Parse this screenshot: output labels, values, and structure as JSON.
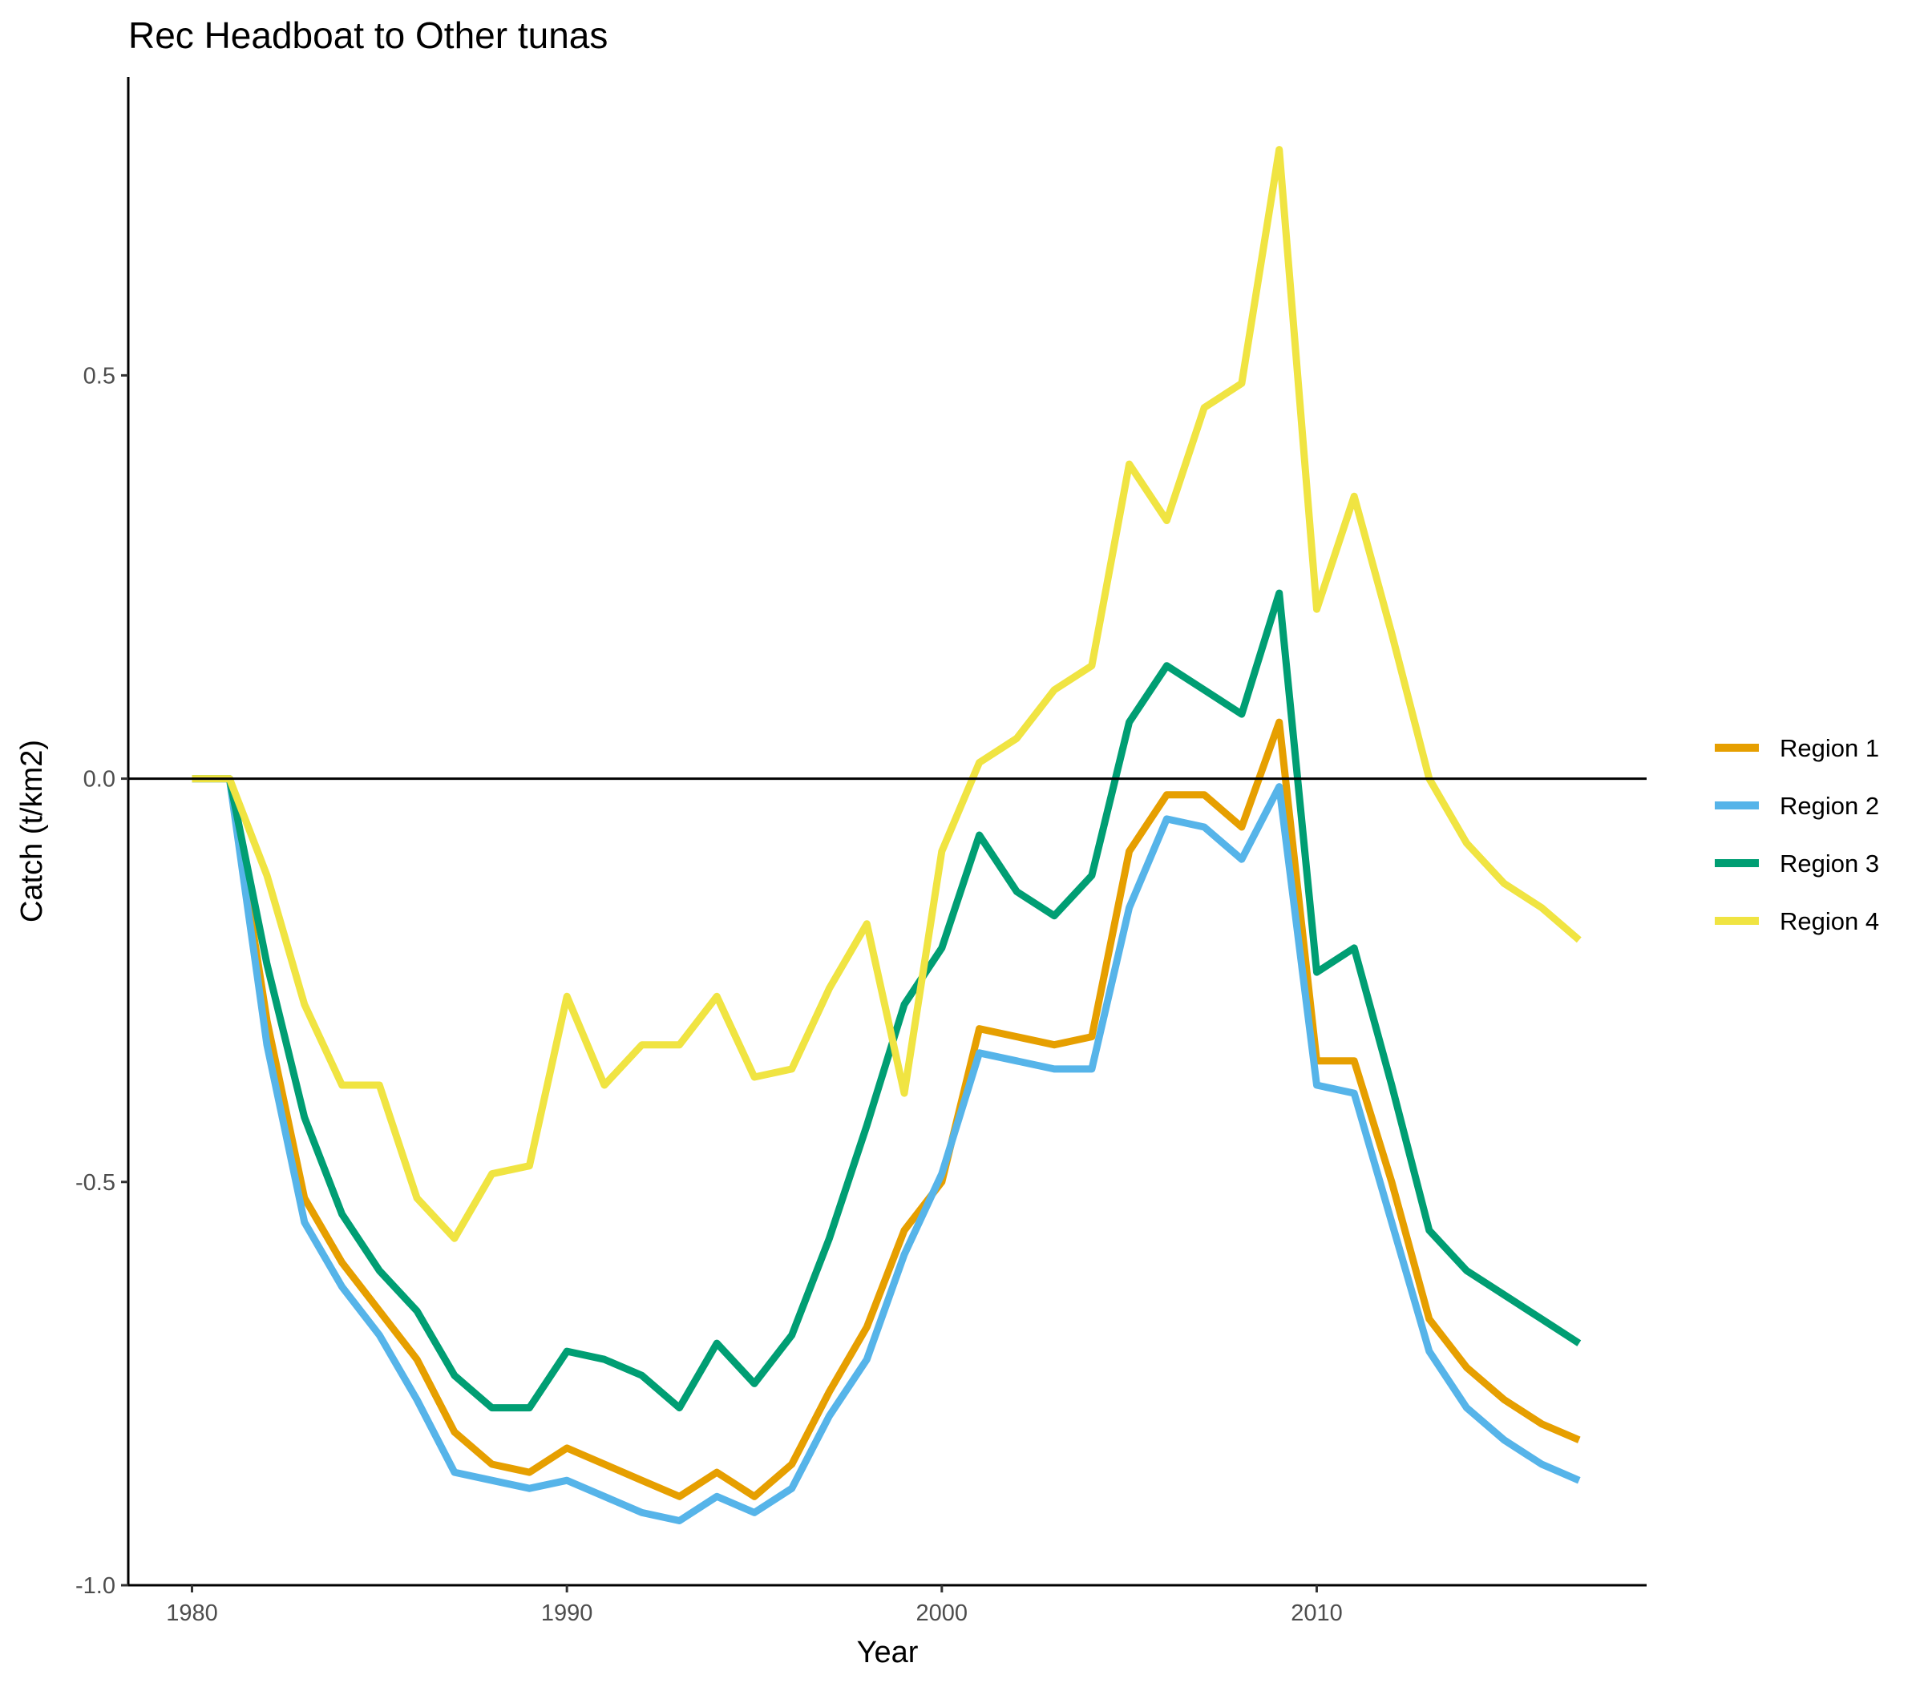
{
  "chart_data": {
    "type": "line",
    "title": "Rec Headboat to Other tunas",
    "xlabel": "Year",
    "ylabel": "Catch (t/km2)",
    "xlim": [
      1978.3,
      2018.8
    ],
    "ylim": [
      -1.0,
      0.87
    ],
    "x_ticks": [
      1980,
      1990,
      2000,
      2010
    ],
    "x_tick_labels": [
      "1980",
      "1990",
      "2000",
      "2010"
    ],
    "y_ticks": [
      -1.0,
      -0.5,
      0.0,
      0.5
    ],
    "y_tick_labels": [
      "-1.0",
      "-0.5",
      "0.0",
      "0.5"
    ],
    "zero_line": 0,
    "grid": false,
    "legend_position": "right",
    "series": [
      {
        "name": "Region 1",
        "color": "#E69F00",
        "x": [
          1980,
          1981,
          1982,
          1983,
          1984,
          1985,
          1986,
          1987,
          1988,
          1989,
          1990,
          1991,
          1992,
          1993,
          1994,
          1995,
          1996,
          1997,
          1998,
          1999,
          2000,
          2001,
          2002,
          2003,
          2004,
          2005,
          2006,
          2007,
          2008,
          2009,
          2010,
          2011,
          2012,
          2013,
          2014,
          2015,
          2016,
          2017
        ],
        "y": [
          0.0,
          0.0,
          -0.3,
          -0.52,
          -0.6,
          -0.66,
          -0.72,
          -0.81,
          -0.85,
          -0.86,
          -0.83,
          -0.85,
          -0.87,
          -0.89,
          -0.86,
          -0.89,
          -0.85,
          -0.76,
          -0.68,
          -0.56,
          -0.5,
          -0.31,
          -0.32,
          -0.33,
          -0.32,
          -0.09,
          -0.02,
          -0.02,
          -0.06,
          0.07,
          -0.35,
          -0.35,
          -0.5,
          -0.67,
          -0.73,
          -0.77,
          -0.8,
          -0.82
        ]
      },
      {
        "name": "Region 2",
        "color": "#56B4E9",
        "x": [
          1980,
          1981,
          1982,
          1983,
          1984,
          1985,
          1986,
          1987,
          1988,
          1989,
          1990,
          1991,
          1992,
          1993,
          1994,
          1995,
          1996,
          1997,
          1998,
          1999,
          2000,
          2001,
          2002,
          2003,
          2004,
          2005,
          2006,
          2007,
          2008,
          2009,
          2010,
          2011,
          2012,
          2013,
          2014,
          2015,
          2016,
          2017
        ],
        "y": [
          0.0,
          0.0,
          -0.33,
          -0.55,
          -0.63,
          -0.69,
          -0.77,
          -0.86,
          -0.87,
          -0.88,
          -0.87,
          -0.89,
          -0.91,
          -0.92,
          -0.89,
          -0.91,
          -0.88,
          -0.79,
          -0.72,
          -0.59,
          -0.49,
          -0.34,
          -0.35,
          -0.36,
          -0.36,
          -0.16,
          -0.05,
          -0.06,
          -0.1,
          -0.01,
          -0.38,
          -0.39,
          -0.55,
          -0.71,
          -0.78,
          -0.82,
          -0.85,
          -0.87
        ]
      },
      {
        "name": "Region 3",
        "color": "#009E73",
        "x": [
          1980,
          1981,
          1982,
          1983,
          1984,
          1985,
          1986,
          1987,
          1988,
          1989,
          1990,
          1991,
          1992,
          1993,
          1994,
          1995,
          1996,
          1997,
          1998,
          1999,
          2000,
          2001,
          2002,
          2003,
          2004,
          2005,
          2006,
          2007,
          2008,
          2009,
          2010,
          2011,
          2012,
          2013,
          2014,
          2015,
          2016,
          2017
        ],
        "y": [
          0.0,
          0.0,
          -0.23,
          -0.42,
          -0.54,
          -0.61,
          -0.66,
          -0.74,
          -0.78,
          -0.78,
          -0.71,
          -0.72,
          -0.74,
          -0.78,
          -0.7,
          -0.75,
          -0.69,
          -0.57,
          -0.43,
          -0.28,
          -0.21,
          -0.07,
          -0.14,
          -0.17,
          -0.12,
          0.07,
          0.14,
          0.11,
          0.08,
          0.23,
          -0.24,
          -0.21,
          -0.38,
          -0.56,
          -0.61,
          -0.64,
          -0.67,
          -0.7
        ]
      },
      {
        "name": "Region 4",
        "color": "#F0E442",
        "x": [
          1980,
          1981,
          1982,
          1983,
          1984,
          1985,
          1986,
          1987,
          1988,
          1989,
          1990,
          1991,
          1992,
          1993,
          1994,
          1995,
          1996,
          1997,
          1998,
          1999,
          2000,
          2001,
          2002,
          2003,
          2004,
          2005,
          2006,
          2007,
          2008,
          2009,
          2010,
          2011,
          2012,
          2013,
          2014,
          2015,
          2016,
          2017
        ],
        "y": [
          0.0,
          0.0,
          -0.12,
          -0.28,
          -0.38,
          -0.38,
          -0.52,
          -0.57,
          -0.49,
          -0.48,
          -0.27,
          -0.38,
          -0.33,
          -0.33,
          -0.27,
          -0.37,
          -0.36,
          -0.26,
          -0.18,
          -0.39,
          -0.09,
          0.02,
          0.05,
          0.11,
          0.14,
          0.39,
          0.32,
          0.46,
          0.49,
          0.78,
          0.21,
          0.35,
          0.18,
          0.0,
          -0.08,
          -0.13,
          -0.16,
          -0.2
        ]
      }
    ]
  }
}
